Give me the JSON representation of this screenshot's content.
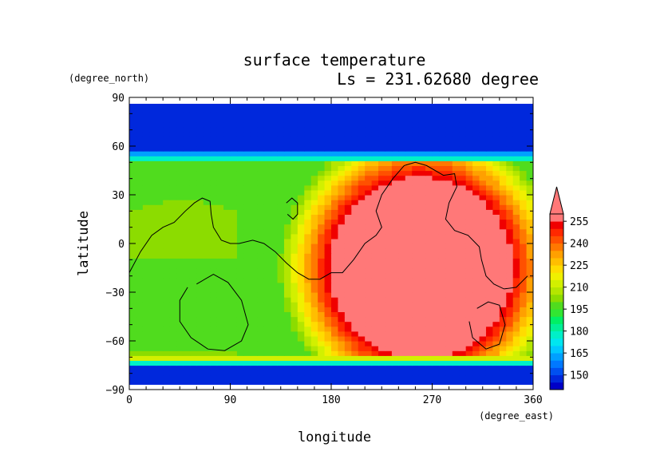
{
  "chart_data": {
    "type": "heatmap",
    "title": "surface temperature",
    "subtitle": "Ls = 231.62680 degree",
    "xlabel": "longitude",
    "ylabel": "latitude",
    "x_units": "(degree_east)",
    "y_units": "(degree_north)",
    "xlim": [
      0,
      360
    ],
    "ylim": [
      -90,
      90
    ],
    "x_ticks": [
      0,
      90,
      180,
      270,
      360
    ],
    "y_ticks": [
      90,
      60,
      30,
      0,
      -30,
      -60,
      -90
    ],
    "x_tick_labels": [
      "0",
      "90",
      "180",
      "270",
      "360"
    ],
    "y_tick_labels": [
      "90",
      "60",
      "30",
      "0",
      "−30",
      "−60",
      "−90"
    ],
    "data_lat_range": [
      -87,
      87
    ],
    "colorbar": {
      "levels": [
        140,
        145,
        150,
        155,
        160,
        165,
        170,
        175,
        180,
        185,
        190,
        195,
        200,
        205,
        210,
        215,
        220,
        225,
        230,
        235,
        240,
        245,
        250,
        255,
        260
      ],
      "labels": [
        "150",
        "165",
        "180",
        "195",
        "210",
        "225",
        "240",
        "255"
      ],
      "label_values": [
        150,
        165,
        180,
        195,
        210,
        225,
        240,
        255
      ],
      "colors": [
        "#0000c8",
        "#0028dc",
        "#0050f0",
        "#0078ff",
        "#00a0ff",
        "#00c8ff",
        "#00e6f0",
        "#00f0c8",
        "#00f096",
        "#00f064",
        "#32e632",
        "#50dc1e",
        "#8cdc00",
        "#b4e600",
        "#d2f000",
        "#f0f000",
        "#ffdc00",
        "#ffbe00",
        "#ffa000",
        "#ff7800",
        "#ff5000",
        "#ff2800",
        "#f00000",
        "#ff7878"
      ],
      "extend": "max"
    },
    "contour_lines": [
      {
        "points": [
          [
            0,
            -18
          ],
          [
            10,
            -5
          ],
          [
            20,
            5
          ],
          [
            30,
            10
          ],
          [
            40,
            13
          ],
          [
            50,
            20
          ],
          [
            58,
            25
          ],
          [
            65,
            28
          ],
          [
            72,
            26
          ],
          [
            73,
            18
          ],
          [
            75,
            10
          ],
          [
            82,
            2
          ],
          [
            90,
            0
          ],
          [
            98,
            0
          ],
          [
            110,
            2
          ],
          [
            120,
            0
          ],
          [
            130,
            -5
          ],
          [
            140,
            -12
          ],
          [
            150,
            -18
          ],
          [
            160,
            -22
          ],
          [
            170,
            -22
          ],
          [
            180,
            -18
          ],
          [
            190,
            -18
          ],
          [
            200,
            -10
          ],
          [
            210,
            0
          ],
          [
            220,
            5
          ],
          [
            225,
            10
          ],
          [
            220,
            20
          ],
          [
            225,
            30
          ],
          [
            235,
            40
          ],
          [
            245,
            48
          ],
          [
            255,
            50
          ],
          [
            265,
            48
          ],
          [
            280,
            42
          ],
          [
            290,
            43
          ],
          [
            292,
            35
          ],
          [
            285,
            25
          ],
          [
            282,
            15
          ],
          [
            290,
            8
          ],
          [
            302,
            5
          ],
          [
            312,
            -2
          ],
          [
            314,
            -10
          ],
          [
            318,
            -20
          ],
          [
            325,
            -25
          ],
          [
            334,
            -28
          ],
          [
            345,
            -27
          ],
          [
            355,
            -20
          ]
        ]
      },
      {
        "points": [
          [
            140,
            25
          ],
          [
            145,
            28
          ],
          [
            150,
            25
          ],
          [
            150,
            18
          ],
          [
            146,
            15
          ],
          [
            141,
            18
          ]
        ]
      },
      {
        "points": [
          [
            60,
            -25
          ],
          [
            75,
            -19
          ],
          [
            88,
            -24
          ],
          [
            100,
            -35
          ],
          [
            106,
            -50
          ],
          [
            100,
            -60
          ],
          [
            85,
            -66
          ],
          [
            70,
            -65
          ],
          [
            55,
            -58
          ],
          [
            45,
            -48
          ],
          [
            45,
            -35
          ],
          [
            52,
            -27
          ]
        ]
      },
      {
        "points": [
          [
            310,
            -40
          ],
          [
            320,
            -36
          ],
          [
            330,
            -38
          ],
          [
            335,
            -50
          ],
          [
            330,
            -62
          ],
          [
            318,
            -65
          ],
          [
            306,
            -58
          ],
          [
            303,
            -48
          ]
        ]
      }
    ]
  }
}
